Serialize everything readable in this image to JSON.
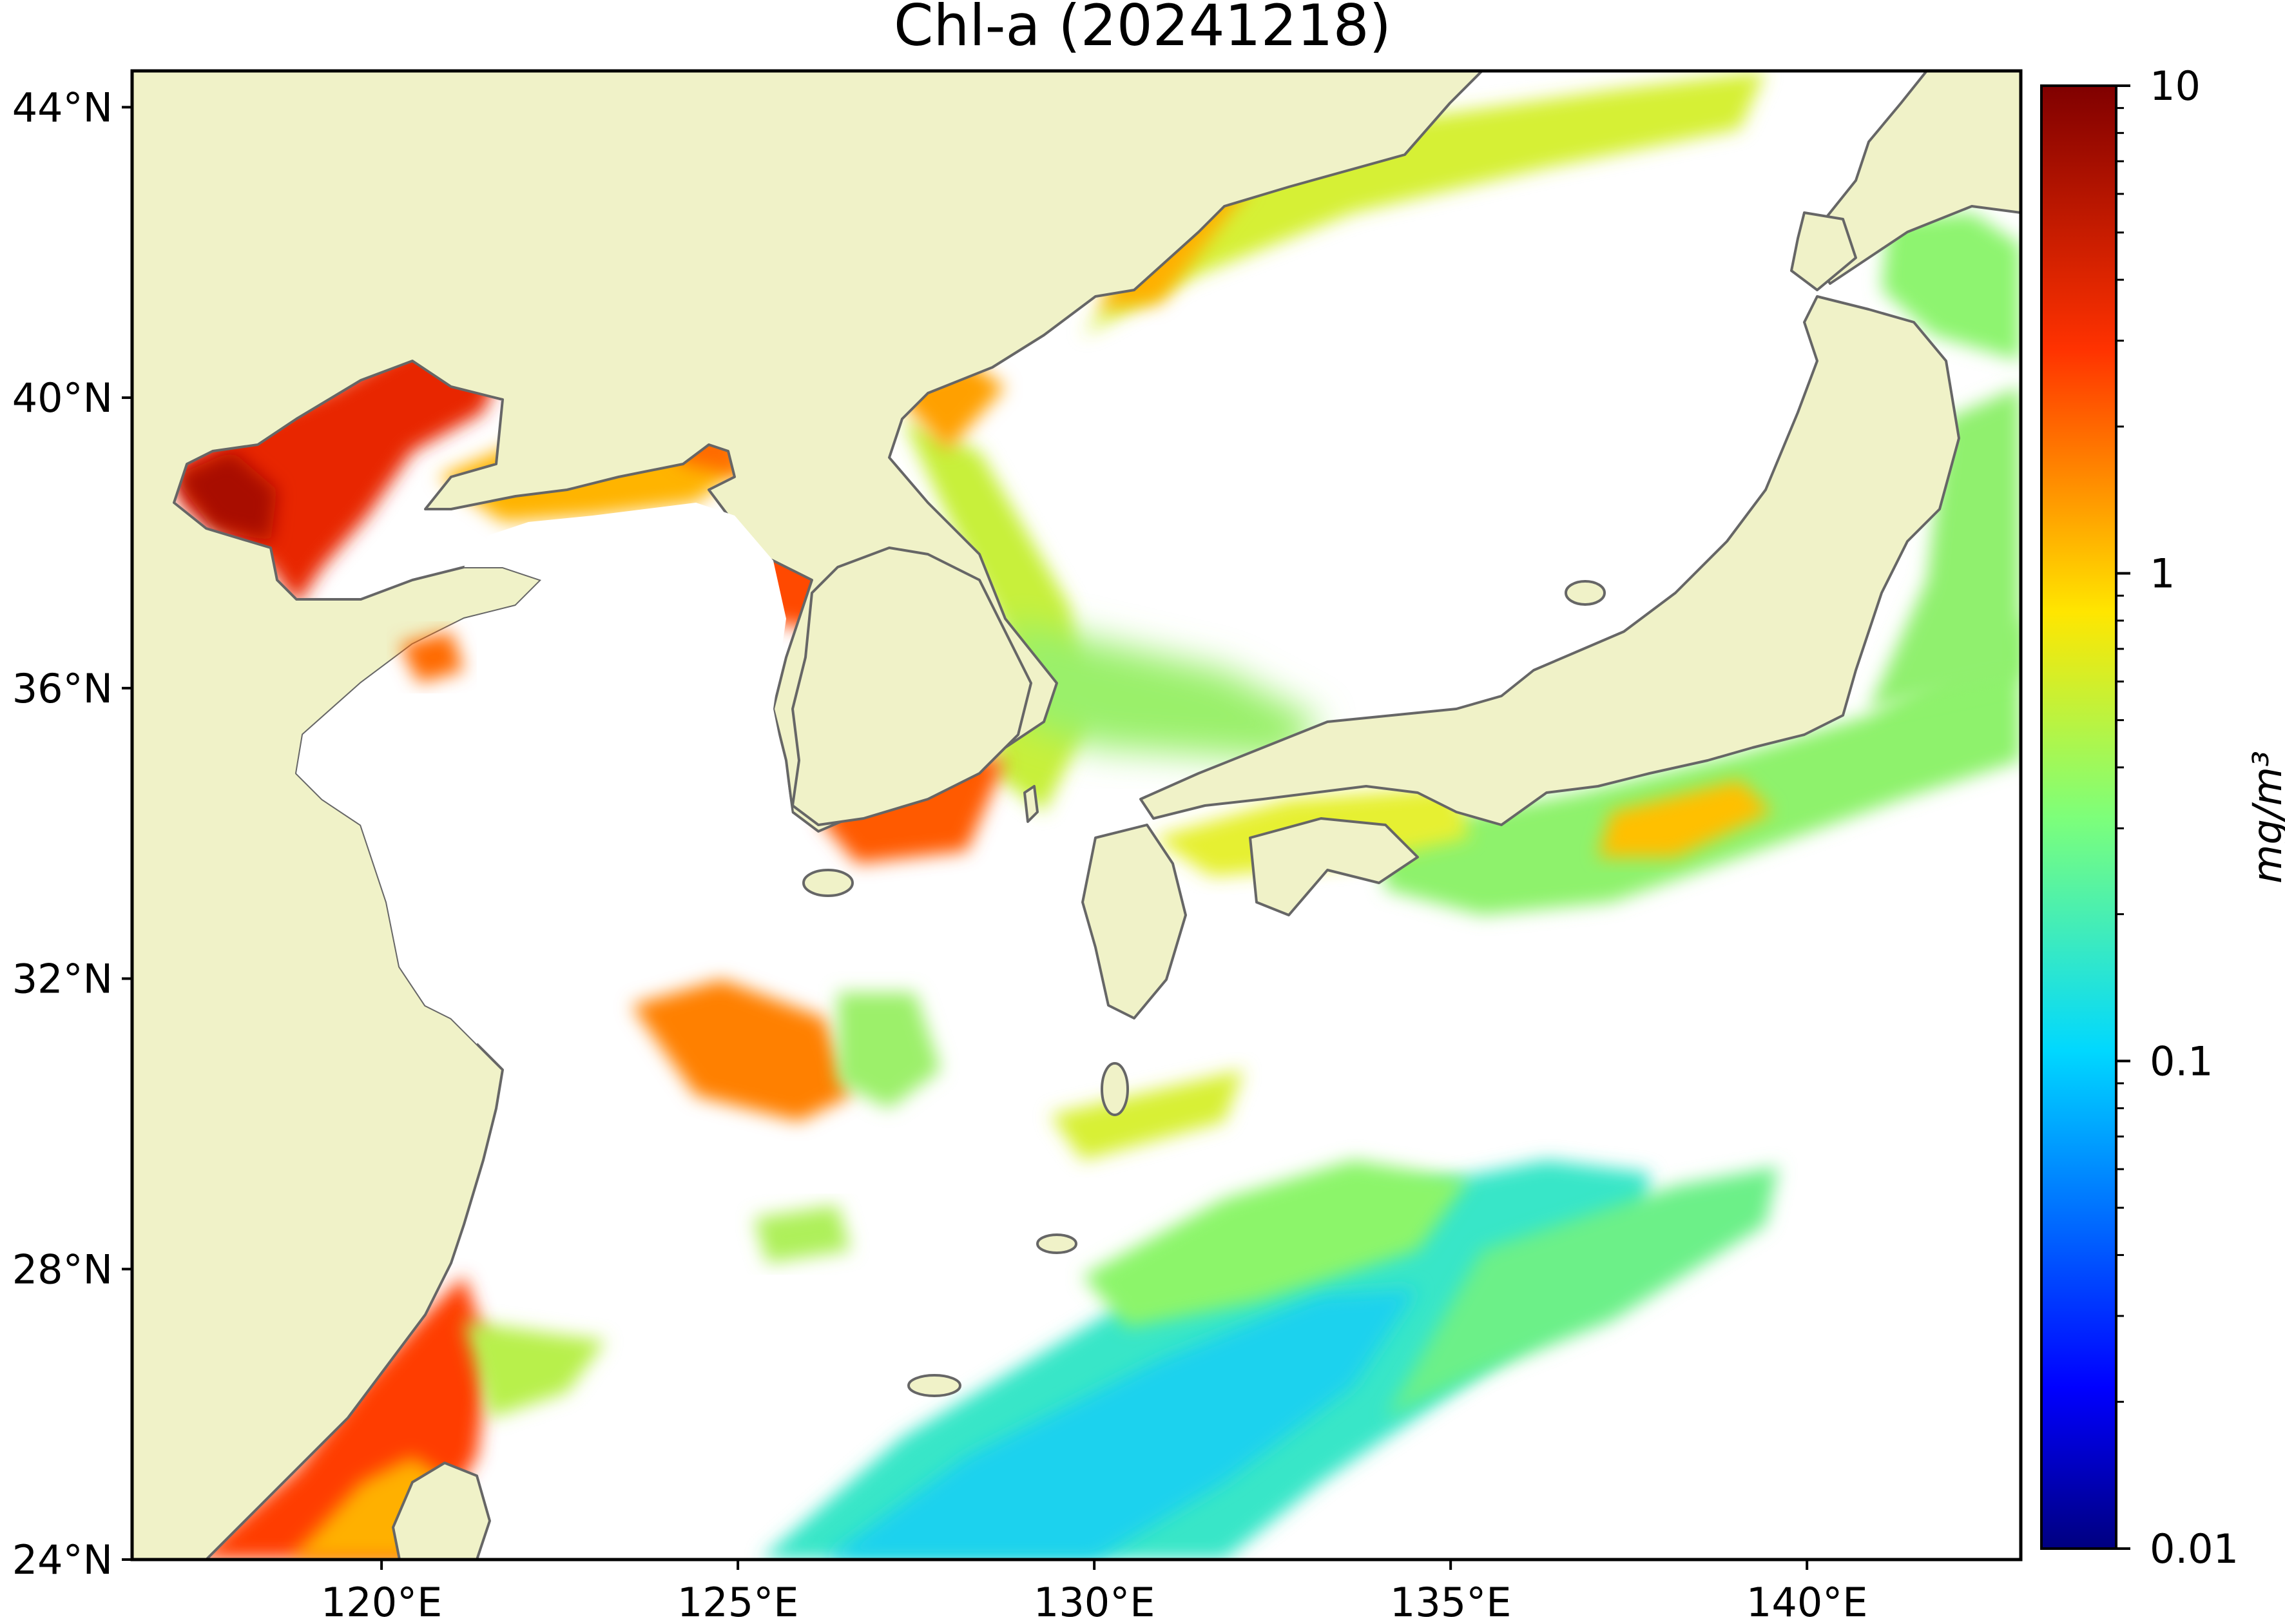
{
  "title": "Chl-a (20241218)",
  "map": {
    "lon_range": [
      116.5,
      143.0
    ],
    "lat_range": [
      24.0,
      44.5
    ],
    "land_color": "#f0f2c8",
    "coast_color": "#666666",
    "no_data_color": "#ffffff",
    "x_ticks": [
      {
        "value": 120,
        "label": "120°E"
      },
      {
        "value": 125,
        "label": "125°E"
      },
      {
        "value": 130,
        "label": "130°E"
      },
      {
        "value": 135,
        "label": "135°E"
      },
      {
        "value": 140,
        "label": "140°E"
      }
    ],
    "y_ticks": [
      {
        "value": 24,
        "label": "24°N"
      },
      {
        "value": 28,
        "label": "28°N"
      },
      {
        "value": 32,
        "label": "32°N"
      },
      {
        "value": 36,
        "label": "36°N"
      },
      {
        "value": 40,
        "label": "40°N"
      },
      {
        "value": 44,
        "label": "44°N"
      }
    ]
  },
  "colorbar": {
    "label": "mg/m³",
    "scale": "log",
    "range": [
      0.01,
      10
    ],
    "colormap": "jet",
    "ticks": [
      {
        "value": 0.01,
        "label": "0.01"
      },
      {
        "value": 0.1,
        "label": "0.1"
      },
      {
        "value": 1,
        "label": "1"
      },
      {
        "value": 10,
        "label": "10"
      }
    ]
  },
  "chlorophyll_patches": [
    {
      "region": "Bohai Sea",
      "approx_value": 5.0
    },
    {
      "region": "North Yellow Sea coast",
      "approx_value": 1.8
    },
    {
      "region": "West coast of Korea",
      "approx_value": 3.5
    },
    {
      "region": "South coast of Korea",
      "approx_value": 3.0
    },
    {
      "region": "East coast of Korea",
      "approx_value": 0.8
    },
    {
      "region": "Primorye coast",
      "approx_value": 1.2
    },
    {
      "region": "Fujian / Zhejiang coast",
      "approx_value": 4.0
    },
    {
      "region": "East China Sea shelf",
      "approx_value": 2.5
    },
    {
      "region": "Pacific coast of Honshu",
      "approx_value": 0.6
    },
    {
      "region": "Kuroshio region",
      "approx_value": 0.15
    },
    {
      "region": "Seto Inland Sea",
      "approx_value": 1.5
    }
  ]
}
